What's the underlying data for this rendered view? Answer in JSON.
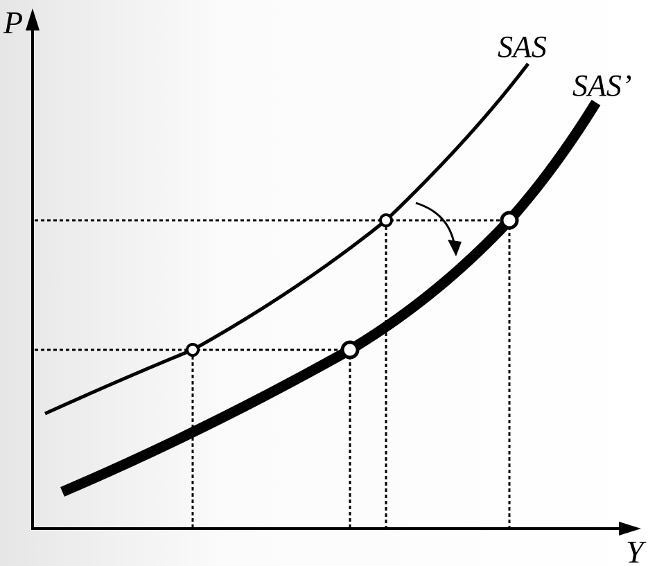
{
  "axes": {
    "y_label": "P",
    "x_label": "Y"
  },
  "curves": [
    {
      "label": "SAS"
    },
    {
      "label": "SAS’"
    }
  ]
}
